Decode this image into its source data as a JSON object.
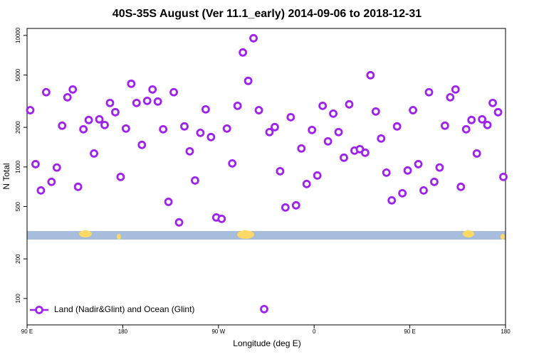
{
  "chart_data": {
    "type": "scatter",
    "title": "40S-35S August (Ver 11.1_early)   2014-09-06 to 2018-12-31",
    "x_label": "Longitude (deg E)",
    "y_label": "N Total",
    "log_y": true,
    "legend_position": "bottom-left",
    "xlim": [
      90,
      540
    ],
    "xticks": [
      {
        "value": 90,
        "label": "90 E"
      },
      180,
      {
        "value": 270,
        "label": "90 W"
      },
      {
        "value": 360,
        "label": "0"
      },
      {
        "value": 450,
        "label": "90 E"
      },
      {
        "value": 540,
        "label": "180"
      }
    ],
    "ylim": [
      63,
      11300
    ],
    "yticks": [
      100,
      200,
      500,
      1000,
      2000,
      5000,
      10000
    ],
    "series": [
      {
        "name": "Land (Nadir&Glint) and Ocean (Glint)",
        "color": "#a020f0",
        "x": [
          93,
          98,
          103,
          108,
          113,
          118,
          123,
          128,
          133,
          138,
          143,
          148,
          153,
          158,
          163,
          168,
          173,
          178,
          183,
          188,
          193,
          198,
          203,
          208,
          213,
          218,
          223,
          228,
          233,
          238,
          243,
          248,
          253,
          258,
          263,
          268,
          273,
          278,
          283,
          288,
          293,
          298,
          303,
          308,
          313,
          318,
          323,
          328,
          333,
          338,
          343,
          348,
          353,
          358,
          363,
          368,
          373,
          378,
          383,
          388,
          393,
          398,
          403,
          408,
          413,
          418,
          423,
          428,
          433,
          438,
          443,
          448,
          453,
          458,
          463,
          468,
          473,
          478,
          483,
          488,
          493,
          498,
          503,
          508,
          513,
          518,
          523,
          528,
          533,
          538
        ],
        "values": [
          2700,
          1050,
          663,
          3700,
          770,
          990,
          2060,
          3385,
          3882,
          706,
          1934,
          2274,
          1266,
          2302,
          2084,
          3065,
          2608,
          840,
          1958,
          4290,
          3065,
          1471,
          3181,
          3882,
          3142,
          1934,
          543,
          3700,
          379,
          2033,
          1315,
          789,
          1817,
          2740,
          1687,
          413,
          403,
          1958,
          1064,
          2916,
          7420,
          4510,
          9515,
          2700,
          83,
          1840,
          2008,
          928,
          492,
          2389,
          511,
          1382,
          742,
          1910,
          861,
          2916,
          1565,
          2543,
          1840,
          1176,
          2990,
          1331,
          1365,
          1283,
          4982,
          2640,
          1645,
          905,
          557,
          2033,
          631,
          940,
          2700,
          1050,
          663,
          3700,
          770,
          990,
          2060,
          3385,
          3882,
          706,
          1934,
          2274,
          1266,
          2302,
          2084,
          3065,
          2608,
          840
        ]
      }
    ]
  }
}
